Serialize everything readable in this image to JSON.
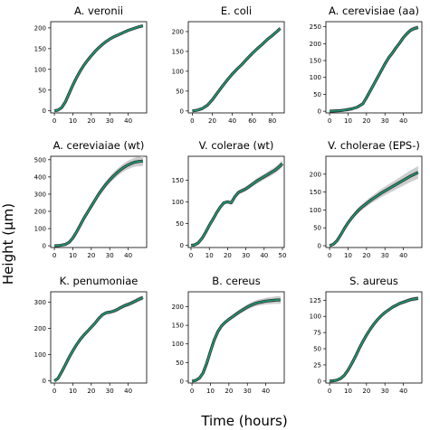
{
  "figure": {
    "xlabel": "Time (hours)",
    "ylabel": "Height (μm)",
    "colors": {
      "data": "#2b2b2b",
      "fit": "#1b9e77",
      "band": "#c8c8c8"
    }
  },
  "chart_data": [
    {
      "type": "line",
      "title": "A. veronii",
      "xlim": [
        -2,
        50
      ],
      "ylim": [
        -5,
        215
      ],
      "xticks": [
        0,
        10,
        20,
        30,
        40
      ],
      "yticks": [
        0,
        50,
        100,
        150,
        200
      ],
      "series": [
        {
          "x": [
            0,
            2,
            4,
            6,
            8,
            10,
            12,
            14,
            16,
            18,
            20,
            22,
            24,
            26,
            28,
            30,
            32,
            34,
            36,
            38,
            40,
            42,
            44,
            46,
            48
          ],
          "y": [
            0,
            2,
            8,
            22,
            42,
            62,
            80,
            96,
            110,
            122,
            133,
            143,
            152,
            160,
            167,
            173,
            178,
            182,
            186,
            190,
            194,
            197,
            200,
            203,
            205
          ]
        }
      ],
      "band": 3
    },
    {
      "type": "line",
      "title": "E. coli",
      "xlim": [
        -4,
        92
      ],
      "ylim": [
        -5,
        225
      ],
      "xticks": [
        0,
        20,
        40,
        60,
        80
      ],
      "yticks": [
        0,
        50,
        100,
        150,
        200
      ],
      "series": [
        {
          "x": [
            0,
            5,
            10,
            15,
            20,
            25,
            30,
            35,
            40,
            45,
            50,
            55,
            60,
            65,
            70,
            75,
            80,
            85,
            88
          ],
          "y": [
            0,
            2,
            6,
            14,
            28,
            45,
            62,
            78,
            93,
            106,
            118,
            132,
            145,
            157,
            168,
            180,
            190,
            201,
            208
          ]
        }
      ],
      "band": 4
    },
    {
      "type": "line",
      "title": "A. cerevisiae (aa)",
      "xlim": [
        -2,
        50
      ],
      "ylim": [
        -5,
        265
      ],
      "xticks": [
        0,
        10,
        20,
        30,
        40
      ],
      "yticks": [
        0,
        50,
        100,
        150,
        200,
        250
      ],
      "series": [
        {
          "x": [
            0,
            3,
            6,
            9,
            12,
            15,
            18,
            20,
            22,
            24,
            26,
            28,
            30,
            32,
            34,
            36,
            38,
            40,
            42,
            44,
            46,
            48
          ],
          "y": [
            0,
            1,
            2,
            4,
            7,
            12,
            22,
            40,
            60,
            80,
            100,
            120,
            140,
            158,
            172,
            188,
            202,
            218,
            230,
            240,
            245,
            248
          ]
        }
      ],
      "band": 6
    },
    {
      "type": "line",
      "title": "A. cereviaiae (wt)",
      "xlim": [
        -2,
        50
      ],
      "ylim": [
        -10,
        520
      ],
      "xticks": [
        0,
        10,
        20,
        30,
        40
      ],
      "yticks": [
        0,
        100,
        200,
        300,
        400,
        500
      ],
      "series": [
        {
          "x": [
            0,
            3,
            6,
            8,
            10,
            12,
            14,
            16,
            18,
            20,
            22,
            24,
            26,
            28,
            30,
            32,
            34,
            36,
            38,
            40,
            42,
            44,
            46,
            48
          ],
          "y": [
            0,
            2,
            8,
            20,
            45,
            80,
            120,
            160,
            195,
            230,
            265,
            300,
            330,
            358,
            383,
            405,
            425,
            443,
            458,
            470,
            480,
            487,
            490,
            492
          ]
        }
      ],
      "band": 25
    },
    {
      "type": "line",
      "title": "V. colerae (wt)",
      "xlim": [
        -1.5,
        51
      ],
      "ylim": [
        -5,
        205
      ],
      "xticks": [
        0,
        10,
        20,
        30,
        40,
        50
      ],
      "yticks": [
        0,
        50,
        100,
        150
      ],
      "series": [
        {
          "x": [
            0,
            2,
            4,
            6,
            8,
            10,
            12,
            14,
            16,
            18,
            20,
            22,
            24,
            26,
            28,
            30,
            32,
            34,
            36,
            38,
            40,
            42,
            44,
            46,
            48,
            50
          ],
          "y": [
            0,
            1,
            6,
            16,
            30,
            46,
            60,
            75,
            88,
            98,
            100,
            98,
            112,
            122,
            126,
            130,
            136,
            142,
            148,
            153,
            158,
            163,
            168,
            173,
            180,
            188
          ]
        }
      ],
      "band": 7
    },
    {
      "type": "line",
      "title": "V. cholerae (EPS-)",
      "xlim": [
        -2,
        50
      ],
      "ylim": [
        -5,
        250
      ],
      "xticks": [
        0,
        10,
        20,
        30,
        40
      ],
      "yticks": [
        0,
        50,
        100,
        150,
        200
      ],
      "series": [
        {
          "x": [
            0,
            2,
            4,
            6,
            8,
            10,
            12,
            14,
            16,
            18,
            20,
            22,
            24,
            26,
            28,
            30,
            32,
            34,
            36,
            38,
            40,
            42,
            44,
            46,
            48
          ],
          "y": [
            0,
            4,
            14,
            30,
            48,
            64,
            78,
            90,
            101,
            110,
            118,
            126,
            133,
            140,
            147,
            153,
            159,
            165,
            171,
            177,
            183,
            189,
            195,
            200,
            205
          ]
        }
      ],
      "band": 15
    },
    {
      "type": "line",
      "title": "K. penumoniae",
      "xlim": [
        -2,
        50
      ],
      "ylim": [
        -8,
        340
      ],
      "xticks": [
        0,
        10,
        20,
        30,
        40
      ],
      "yticks": [
        0,
        100,
        200,
        300
      ],
      "series": [
        {
          "x": [
            0,
            2,
            4,
            6,
            8,
            10,
            12,
            14,
            16,
            18,
            20,
            22,
            24,
            26,
            28,
            30,
            32,
            34,
            36,
            38,
            40,
            42,
            44,
            46,
            48
          ],
          "y": [
            0,
            10,
            35,
            62,
            90,
            115,
            138,
            158,
            175,
            190,
            205,
            220,
            238,
            252,
            260,
            262,
            266,
            272,
            280,
            287,
            292,
            298,
            305,
            312,
            318
          ]
        }
      ],
      "band": 8
    },
    {
      "type": "line",
      "title": "B. cereus",
      "xlim": [
        -2,
        50
      ],
      "ylim": [
        -5,
        240
      ],
      "xticks": [
        0,
        10,
        20,
        30,
        40
      ],
      "yticks": [
        0,
        50,
        100,
        150,
        200
      ],
      "series": [
        {
          "x": [
            0,
            2,
            4,
            6,
            8,
            10,
            12,
            14,
            16,
            18,
            20,
            22,
            24,
            26,
            28,
            30,
            32,
            34,
            36,
            38,
            40,
            42,
            44,
            46,
            48
          ],
          "y": [
            0,
            2,
            8,
            22,
            48,
            80,
            110,
            133,
            148,
            158,
            166,
            173,
            180,
            187,
            193,
            199,
            204,
            208,
            211,
            213,
            215,
            216,
            217,
            218,
            218
          ]
        }
      ],
      "band": 9
    },
    {
      "type": "line",
      "title": "S. aureus",
      "xlim": [
        -2,
        50
      ],
      "ylim": [
        -3,
        138
      ],
      "xticks": [
        0,
        10,
        20,
        30,
        40
      ],
      "yticks": [
        0,
        25,
        50,
        75,
        100,
        125
      ],
      "series": [
        {
          "x": [
            0,
            2,
            4,
            6,
            8,
            10,
            12,
            14,
            16,
            18,
            20,
            22,
            24,
            26,
            28,
            30,
            32,
            34,
            36,
            38,
            40,
            42,
            44,
            46,
            48
          ],
          "y": [
            0,
            0.5,
            1.5,
            4,
            9,
            17,
            27,
            38,
            50,
            61,
            71,
            80,
            88,
            95,
            101,
            106,
            110,
            114,
            117,
            120,
            122,
            124,
            126,
            127,
            128
          ]
        }
      ],
      "band": 3
    }
  ]
}
